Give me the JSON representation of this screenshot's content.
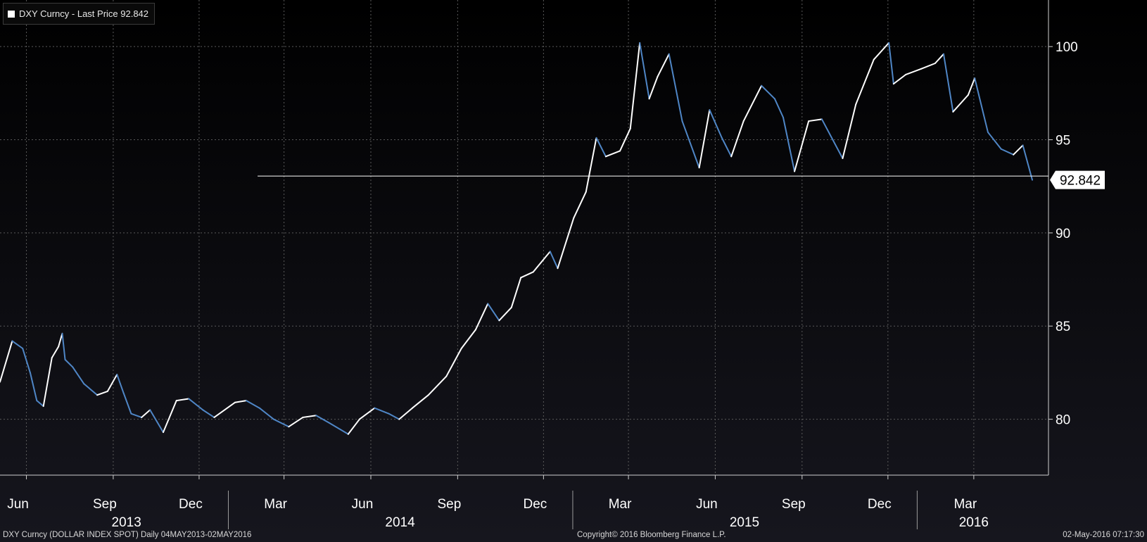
{
  "legend": {
    "label": "DXY Curncy - Last Price 92.842",
    "swatch_color": "#ffffff"
  },
  "footer": {
    "left": "DXY Curncy (DOLLAR INDEX SPOT)  Daily 04MAY2013-02MAY2016",
    "center": "Copyright© 2016 Bloomberg Finance L.P.",
    "right": "02-May-2016 07:17:30"
  },
  "colors": {
    "background_top": "#000000",
    "background_bottom": "#16161e",
    "up": "#ffffff",
    "down": "#4f86c6",
    "grid": "#5a5a5a"
  },
  "chart_data": {
    "type": "line",
    "title": "",
    "xlabel": "",
    "ylabel": "",
    "ylim": [
      77,
      102.5
    ],
    "x_range": [
      "2013-05-04",
      "2016-05-02"
    ],
    "y_ticks": [
      80,
      85,
      90,
      95,
      100
    ],
    "x_month_ticks": [
      {
        "date": "2013-06-01",
        "label": "Jun"
      },
      {
        "date": "2013-09-01",
        "label": "Sep"
      },
      {
        "date": "2013-12-01",
        "label": "Dec"
      },
      {
        "date": "2014-03-01",
        "label": "Mar"
      },
      {
        "date": "2014-06-01",
        "label": "Jun"
      },
      {
        "date": "2014-09-01",
        "label": "Sep"
      },
      {
        "date": "2014-12-01",
        "label": "Dec"
      },
      {
        "date": "2015-03-01",
        "label": "Mar"
      },
      {
        "date": "2015-06-01",
        "label": "Jun"
      },
      {
        "date": "2015-09-01",
        "label": "Sep"
      },
      {
        "date": "2015-12-01",
        "label": "Dec"
      },
      {
        "date": "2016-03-01",
        "label": "Mar"
      }
    ],
    "x_year_labels": [
      {
        "date": "2013-09-15",
        "label": "2013"
      },
      {
        "date": "2014-07-02",
        "label": "2014"
      },
      {
        "date": "2015-07-02",
        "label": "2015"
      },
      {
        "date": "2016-03-01",
        "label": "2016"
      }
    ],
    "year_separators": [
      "2014-01-01",
      "2015-01-01",
      "2016-01-01"
    ],
    "last_price": {
      "value": 92.842,
      "label": "92.842"
    },
    "reference_line": {
      "value": 93.05,
      "from": "2014-02-01"
    },
    "series": [
      {
        "points": [
          [
            "2013-05-04",
            82.0
          ],
          [
            "2013-05-17",
            84.2
          ],
          [
            "2013-05-28",
            83.8
          ],
          [
            "2013-06-05",
            82.5
          ],
          [
            "2013-06-12",
            81.0
          ],
          [
            "2013-06-19",
            80.7
          ],
          [
            "2013-06-28",
            83.3
          ],
          [
            "2013-07-05",
            83.9
          ],
          [
            "2013-07-09",
            84.6
          ],
          [
            "2013-07-12",
            83.2
          ],
          [
            "2013-07-20",
            82.8
          ],
          [
            "2013-08-01",
            81.9
          ],
          [
            "2013-08-15",
            81.3
          ],
          [
            "2013-08-26",
            81.5
          ],
          [
            "2013-09-05",
            82.4
          ],
          [
            "2013-09-12",
            81.4
          ],
          [
            "2013-09-20",
            80.3
          ],
          [
            "2013-10-01",
            80.1
          ],
          [
            "2013-10-10",
            80.5
          ],
          [
            "2013-10-24",
            79.3
          ],
          [
            "2013-11-07",
            81.0
          ],
          [
            "2013-11-20",
            81.1
          ],
          [
            "2013-12-05",
            80.5
          ],
          [
            "2013-12-17",
            80.1
          ],
          [
            "2014-01-08",
            80.9
          ],
          [
            "2014-01-20",
            81.0
          ],
          [
            "2014-02-03",
            80.6
          ],
          [
            "2014-02-18",
            80.0
          ],
          [
            "2014-03-06",
            79.6
          ],
          [
            "2014-03-21",
            80.1
          ],
          [
            "2014-04-04",
            80.2
          ],
          [
            "2014-04-18",
            79.8
          ],
          [
            "2014-05-08",
            79.2
          ],
          [
            "2014-05-20",
            80.0
          ],
          [
            "2014-06-05",
            80.6
          ],
          [
            "2014-06-20",
            80.3
          ],
          [
            "2014-07-01",
            80.0
          ],
          [
            "2014-07-15",
            80.6
          ],
          [
            "2014-08-01",
            81.3
          ],
          [
            "2014-08-20",
            82.3
          ],
          [
            "2014-09-05",
            83.8
          ],
          [
            "2014-09-20",
            84.8
          ],
          [
            "2014-10-03",
            86.2
          ],
          [
            "2014-10-15",
            85.3
          ],
          [
            "2014-10-28",
            86.0
          ],
          [
            "2014-11-07",
            87.6
          ],
          [
            "2014-11-20",
            87.9
          ],
          [
            "2014-12-08",
            89.0
          ],
          [
            "2014-12-16",
            88.1
          ],
          [
            "2015-01-02",
            90.8
          ],
          [
            "2015-01-15",
            92.2
          ],
          [
            "2015-01-26",
            95.1
          ],
          [
            "2015-02-05",
            94.1
          ],
          [
            "2015-02-20",
            94.4
          ],
          [
            "2015-03-03",
            95.6
          ],
          [
            "2015-03-13",
            100.2
          ],
          [
            "2015-03-23",
            97.2
          ],
          [
            "2015-04-01",
            98.4
          ],
          [
            "2015-04-13",
            99.6
          ],
          [
            "2015-04-27",
            96.0
          ],
          [
            "2015-05-15",
            93.5
          ],
          [
            "2015-05-26",
            96.6
          ],
          [
            "2015-06-08",
            95.1
          ],
          [
            "2015-06-18",
            94.1
          ],
          [
            "2015-07-01",
            96.0
          ],
          [
            "2015-07-20",
            97.9
          ],
          [
            "2015-08-03",
            97.2
          ],
          [
            "2015-08-12",
            96.2
          ],
          [
            "2015-08-24",
            93.3
          ],
          [
            "2015-09-08",
            96.0
          ],
          [
            "2015-09-22",
            96.1
          ],
          [
            "2015-10-14",
            94.0
          ],
          [
            "2015-10-28",
            96.9
          ],
          [
            "2015-11-16",
            99.3
          ],
          [
            "2015-12-02",
            100.2
          ],
          [
            "2015-12-07",
            98.0
          ],
          [
            "2015-12-20",
            98.5
          ],
          [
            "2016-01-05",
            98.8
          ],
          [
            "2016-01-20",
            99.1
          ],
          [
            "2016-01-29",
            99.6
          ],
          [
            "2016-02-08",
            96.5
          ],
          [
            "2016-02-24",
            97.4
          ],
          [
            "2016-03-02",
            98.3
          ],
          [
            "2016-03-16",
            95.4
          ],
          [
            "2016-03-30",
            94.5
          ],
          [
            "2016-04-12",
            94.2
          ],
          [
            "2016-04-22",
            94.7
          ],
          [
            "2016-05-02",
            92.842
          ]
        ]
      }
    ]
  }
}
